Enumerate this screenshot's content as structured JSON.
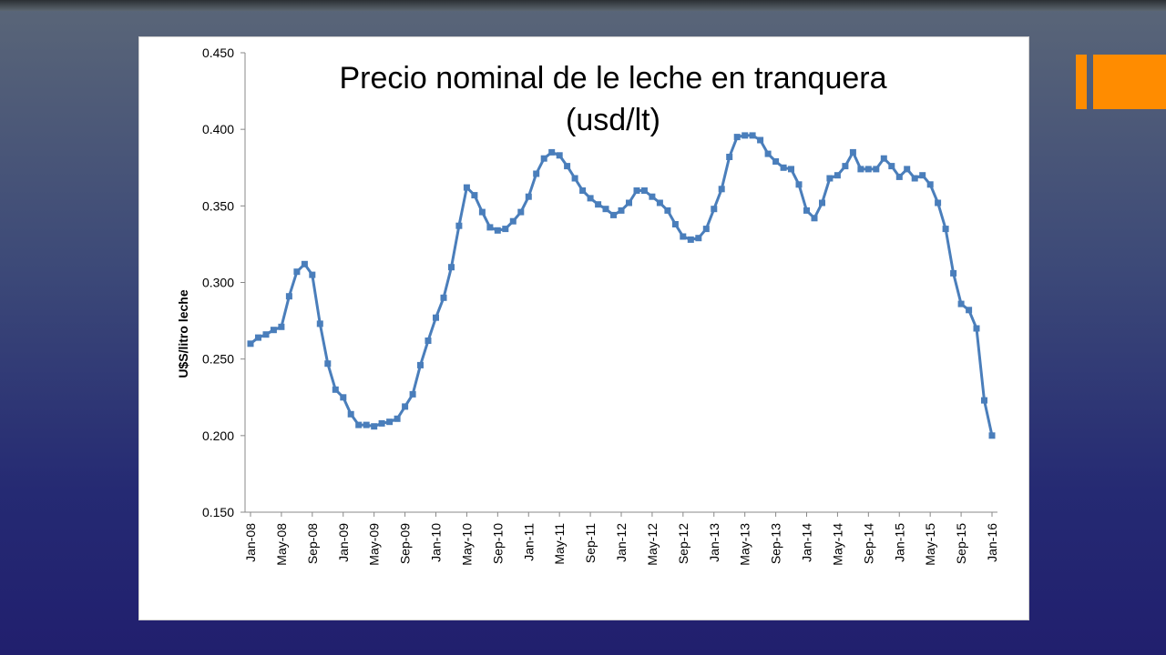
{
  "colors": {
    "accent": "#ff8c00",
    "series": "#4a7ebb"
  },
  "chart_data": {
    "type": "line",
    "title": "Precio nominal de le leche en tranquera (usd/lt)",
    "ylabel": "U$S/litro leche",
    "xlabel": "",
    "ylim": [
      0.15,
      0.45
    ],
    "yticks": [
      "0.450",
      "0.400",
      "0.350",
      "0.300",
      "0.250",
      "0.200",
      "0.150"
    ],
    "ytick_values": [
      0.45,
      0.4,
      0.35,
      0.3,
      0.25,
      0.2,
      0.15
    ],
    "xtick_labels": [
      "Jan-08",
      "May-08",
      "Sep-08",
      "Jan-09",
      "May-09",
      "Sep-09",
      "Jan-10",
      "May-10",
      "Sep-10",
      "Jan-11",
      "May-11",
      "Sep-11",
      "Jan-12",
      "May-12",
      "Sep-12",
      "Jan-13",
      "May-13",
      "Sep-13",
      "Jan-14",
      "May-14",
      "Sep-14",
      "Jan-15",
      "May-15",
      "Sep-15",
      "Jan-16"
    ],
    "x_start": "Jan-08",
    "x_end": "Jan-16",
    "grid": false,
    "legend": "none",
    "series": [
      {
        "marker": "square",
        "values": [
          0.26,
          0.264,
          0.266,
          0.269,
          0.271,
          0.291,
          0.307,
          0.312,
          0.305,
          0.273,
          0.247,
          0.23,
          0.225,
          0.214,
          0.207,
          0.207,
          0.206,
          0.208,
          0.209,
          0.211,
          0.219,
          0.227,
          0.246,
          0.262,
          0.277,
          0.29,
          0.31,
          0.337,
          0.362,
          0.357,
          0.346,
          0.336,
          0.334,
          0.335,
          0.34,
          0.346,
          0.356,
          0.371,
          0.381,
          0.385,
          0.383,
          0.376,
          0.368,
          0.36,
          0.355,
          0.351,
          0.348,
          0.344,
          0.347,
          0.352,
          0.36,
          0.36,
          0.356,
          0.352,
          0.347,
          0.338,
          0.33,
          0.328,
          0.329,
          0.335,
          0.348,
          0.361,
          0.382,
          0.395,
          0.396,
          0.396,
          0.393,
          0.384,
          0.379,
          0.375,
          0.374,
          0.364,
          0.347,
          0.342,
          0.352,
          0.368,
          0.37,
          0.376,
          0.385,
          0.374,
          0.374,
          0.374,
          0.381,
          0.376,
          0.369,
          0.374,
          0.368,
          0.37,
          0.364,
          0.352,
          0.335,
          0.306,
          0.286,
          0.282,
          0.27,
          0.223,
          0.2
        ]
      }
    ]
  }
}
